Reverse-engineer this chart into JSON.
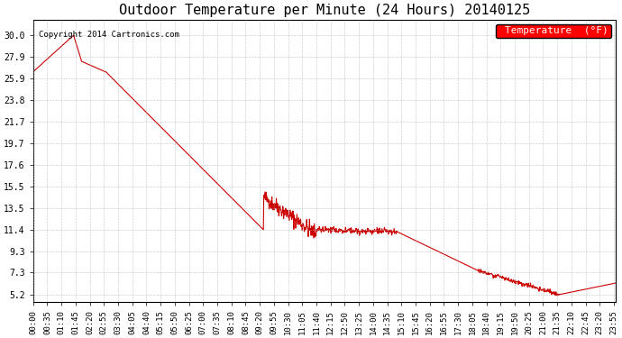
{
  "title": "Outdoor Temperature per Minute (24 Hours) 20140125",
  "copyright_text": "Copyright 2014 Cartronics.com",
  "legend_label": "Temperature  (°F)",
  "line_color": "#cc0000",
  "background_color": "#ffffff",
  "grid_color": "#aaaaaa",
  "ylim": [
    4.5,
    31.5
  ],
  "yticks": [
    5.2,
    7.3,
    9.3,
    11.4,
    13.5,
    15.5,
    17.6,
    19.7,
    21.7,
    23.8,
    25.9,
    27.9,
    30.0
  ],
  "xtick_labels": [
    "00:00",
    "00:35",
    "01:10",
    "01:45",
    "02:20",
    "02:55",
    "03:30",
    "04:05",
    "04:40",
    "05:15",
    "05:50",
    "06:25",
    "07:00",
    "07:35",
    "08:10",
    "08:45",
    "09:20",
    "09:55",
    "10:30",
    "11:05",
    "11:40",
    "12:15",
    "12:50",
    "13:25",
    "14:00",
    "14:35",
    "15:10",
    "15:45",
    "16:20",
    "16:55",
    "17:30",
    "18:05",
    "18:40",
    "19:15",
    "19:50",
    "20:25",
    "21:00",
    "21:35",
    "22:10",
    "22:45",
    "23:20",
    "23:55"
  ]
}
